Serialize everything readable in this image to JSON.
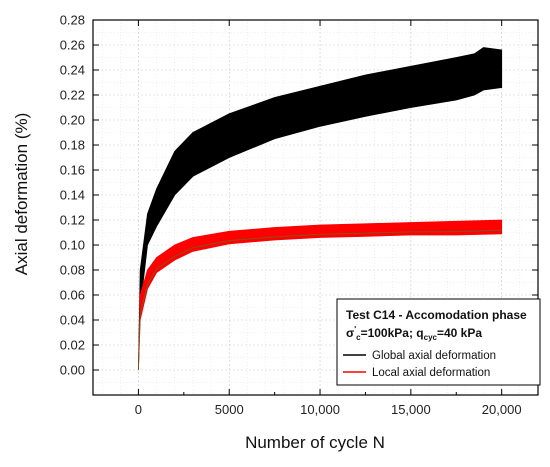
{
  "chart_data": {
    "type": "area",
    "xlabel": "Number of cycle N",
    "ylabel": "Axial deformation (%)",
    "xlim": [
      -2500,
      22000
    ],
    "ylim": [
      -0.02,
      0.28
    ],
    "x_ticks": [
      0,
      5000,
      10000,
      15000,
      20000
    ],
    "x_tick_labels": [
      "0",
      "5000",
      "10,000",
      "15,000",
      "20,000"
    ],
    "y_ticks": [
      0.0,
      0.02,
      0.04,
      0.06,
      0.08,
      0.1,
      0.12,
      0.14,
      0.16,
      0.18,
      0.2,
      0.22,
      0.24,
      0.26,
      0.28
    ],
    "y_tick_labels": [
      "0.00",
      "0.02",
      "0.04",
      "0.06",
      "0.08",
      "0.10",
      "0.12",
      "0.14",
      "0.16",
      "0.18",
      "0.20",
      "0.22",
      "0.24",
      "0.26",
      "0.28"
    ],
    "grid": true,
    "legend_position": "bottom-right",
    "legend": {
      "title": "Test C14 - Accomodation phase",
      "subtitle": {
        "sigma": "σ",
        "sigma_sup": "'",
        "sigma_sub": "c",
        "mid": "=100kPa; q",
        "q_sub": "cyc",
        "end": "=40 kPa"
      }
    },
    "series": [
      {
        "name": "Global axial deformation",
        "color": "#000000",
        "x": [
          0,
          100,
          500,
          1000,
          2000,
          3000,
          5000,
          7500,
          10000,
          12500,
          15000,
          17500,
          18500,
          19000,
          20000
        ],
        "upper": [
          0.0,
          0.08,
          0.125,
          0.145,
          0.175,
          0.19,
          0.205,
          0.218,
          0.227,
          0.236,
          0.243,
          0.25,
          0.253,
          0.258,
          0.256
        ],
        "lower": [
          0.0,
          0.05,
          0.1,
          0.115,
          0.14,
          0.155,
          0.17,
          0.185,
          0.195,
          0.203,
          0.21,
          0.216,
          0.22,
          0.224,
          0.226
        ]
      },
      {
        "name": "Local axial deformation",
        "color": "#ff0000",
        "x": [
          0,
          100,
          500,
          1000,
          2000,
          3000,
          5000,
          7500,
          10000,
          12500,
          15000,
          17500,
          20000
        ],
        "upper": [
          0.0,
          0.06,
          0.08,
          0.09,
          0.1,
          0.106,
          0.111,
          0.114,
          0.116,
          0.117,
          0.118,
          0.119,
          0.12
        ],
        "lower": [
          0.0,
          0.04,
          0.065,
          0.078,
          0.088,
          0.095,
          0.101,
          0.104,
          0.106,
          0.107,
          0.108,
          0.108,
          0.109
        ]
      }
    ]
  }
}
